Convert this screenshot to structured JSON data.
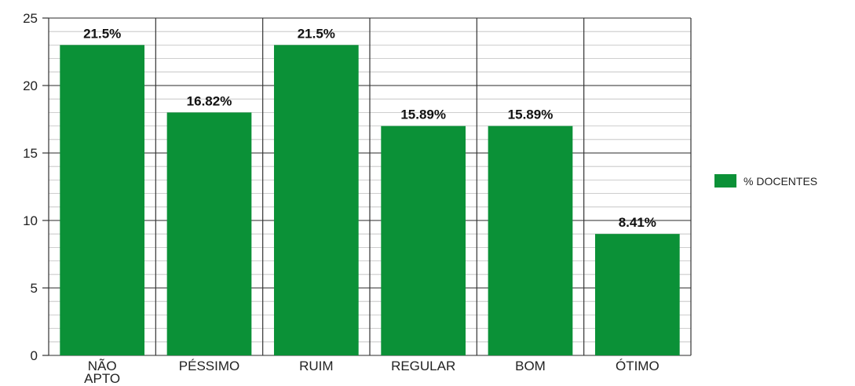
{
  "chart_data": {
    "type": "bar",
    "categories": [
      [
        "NÃO",
        "APTO"
      ],
      [
        "PÉSSIMO"
      ],
      [
        "RUIM"
      ],
      [
        "REGULAR"
      ],
      [
        "BOM"
      ],
      [
        "ÓTIMO"
      ]
    ],
    "values": [
      23,
      18,
      23,
      17,
      17,
      9
    ],
    "data_labels": [
      "21.5%",
      "16.82%",
      "21.5%",
      "15.89%",
      "15.89%",
      "8.41%"
    ],
    "series": [
      {
        "name": "% DOCENTES",
        "color": "#0b9137"
      }
    ],
    "ylim": [
      0,
      25
    ],
    "yticks": [
      0,
      5,
      10,
      15,
      20,
      25
    ],
    "grid": true,
    "legend_position": "right"
  }
}
